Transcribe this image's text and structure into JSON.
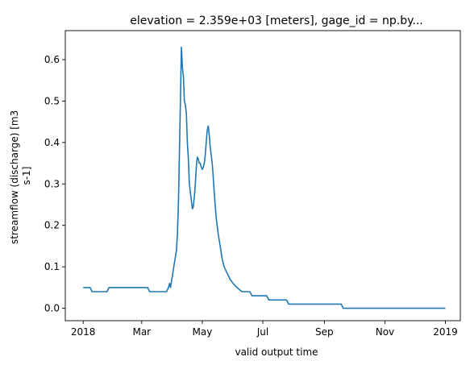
{
  "chart_data": {
    "type": "line",
    "title": "elevation = 2.359e+03 [meters], gage_id = np.by...",
    "xlabel": "valid output time",
    "ylabel_lines": [
      "streamflow (discharge) [m3",
      "s-1]"
    ],
    "xlim": [
      "2017-12-14",
      "2019-01-16"
    ],
    "ylim": [
      -0.03,
      0.67
    ],
    "x_ticks": [
      {
        "date": "2018-01-01",
        "label": "2018"
      },
      {
        "date": "2018-03-01",
        "label": "Mar"
      },
      {
        "date": "2018-05-01",
        "label": "May"
      },
      {
        "date": "2018-07-01",
        "label": "Jul"
      },
      {
        "date": "2018-09-01",
        "label": "Sep"
      },
      {
        "date": "2018-11-01",
        "label": "Nov"
      },
      {
        "date": "2019-01-01",
        "label": "2019"
      }
    ],
    "y_ticks": [
      {
        "value": 0.0,
        "label": "0.0"
      },
      {
        "value": 0.1,
        "label": "0.1"
      },
      {
        "value": 0.2,
        "label": "0.2"
      },
      {
        "value": 0.3,
        "label": "0.3"
      },
      {
        "value": 0.4,
        "label": "0.4"
      },
      {
        "value": 0.5,
        "label": "0.5"
      },
      {
        "value": 0.6,
        "label": "0.6"
      }
    ],
    "series": [
      {
        "color": "#1f77b4",
        "points": [
          [
            "2018-01-01",
            0.05
          ],
          [
            "2018-01-08",
            0.05
          ],
          [
            "2018-01-10",
            0.04
          ],
          [
            "2018-01-25",
            0.04
          ],
          [
            "2018-01-27",
            0.05
          ],
          [
            "2018-03-07",
            0.05
          ],
          [
            "2018-03-09",
            0.04
          ],
          [
            "2018-03-26",
            0.04
          ],
          [
            "2018-03-28",
            0.05
          ],
          [
            "2018-03-29",
            0.06
          ],
          [
            "2018-03-30",
            0.05
          ],
          [
            "2018-04-01",
            0.08
          ],
          [
            "2018-04-03",
            0.11
          ],
          [
            "2018-04-05",
            0.14
          ],
          [
            "2018-04-06",
            0.18
          ],
          [
            "2018-04-07",
            0.26
          ],
          [
            "2018-04-08",
            0.38
          ],
          [
            "2018-04-09",
            0.5
          ],
          [
            "2018-04-10",
            0.63
          ],
          [
            "2018-04-11",
            0.58
          ],
          [
            "2018-04-12",
            0.56
          ],
          [
            "2018-04-13",
            0.5
          ],
          [
            "2018-04-14",
            0.49
          ],
          [
            "2018-04-15",
            0.47
          ],
          [
            "2018-04-16",
            0.4
          ],
          [
            "2018-04-17",
            0.36
          ],
          [
            "2018-04-18",
            0.3
          ],
          [
            "2018-04-19",
            0.28
          ],
          [
            "2018-04-20",
            0.26
          ],
          [
            "2018-04-21",
            0.24
          ],
          [
            "2018-04-22",
            0.245
          ],
          [
            "2018-04-23",
            0.27
          ],
          [
            "2018-04-24",
            0.3
          ],
          [
            "2018-04-25",
            0.34
          ],
          [
            "2018-04-26",
            0.365
          ],
          [
            "2018-04-27",
            0.36
          ],
          [
            "2018-04-28",
            0.35
          ],
          [
            "2018-04-29",
            0.35
          ],
          [
            "2018-04-30",
            0.34
          ],
          [
            "2018-05-01",
            0.335
          ],
          [
            "2018-05-02",
            0.34
          ],
          [
            "2018-05-03",
            0.35
          ],
          [
            "2018-05-04",
            0.37
          ],
          [
            "2018-05-05",
            0.4
          ],
          [
            "2018-05-06",
            0.43
          ],
          [
            "2018-05-07",
            0.44
          ],
          [
            "2018-05-08",
            0.42
          ],
          [
            "2018-05-09",
            0.39
          ],
          [
            "2018-05-10",
            0.37
          ],
          [
            "2018-05-11",
            0.35
          ],
          [
            "2018-05-12",
            0.32
          ],
          [
            "2018-05-13",
            0.28
          ],
          [
            "2018-05-14",
            0.25
          ],
          [
            "2018-05-15",
            0.22
          ],
          [
            "2018-05-17",
            0.18
          ],
          [
            "2018-05-19",
            0.15
          ],
          [
            "2018-05-21",
            0.12
          ],
          [
            "2018-05-23",
            0.1
          ],
          [
            "2018-05-25",
            0.09
          ],
          [
            "2018-05-27",
            0.08
          ],
          [
            "2018-05-29",
            0.07
          ],
          [
            "2018-06-01",
            0.06
          ],
          [
            "2018-06-05",
            0.05
          ],
          [
            "2018-06-10",
            0.04
          ],
          [
            "2018-06-18",
            0.04
          ],
          [
            "2018-06-20",
            0.03
          ],
          [
            "2018-06-30",
            0.03
          ],
          [
            "2018-07-05",
            0.03
          ],
          [
            "2018-07-07",
            0.02
          ],
          [
            "2018-07-25",
            0.02
          ],
          [
            "2018-07-27",
            0.01
          ],
          [
            "2018-09-18",
            0.01
          ],
          [
            "2018-09-20",
            0.0
          ],
          [
            "2019-01-01",
            0.0
          ]
        ]
      }
    ],
    "grid": false,
    "legend": false
  }
}
